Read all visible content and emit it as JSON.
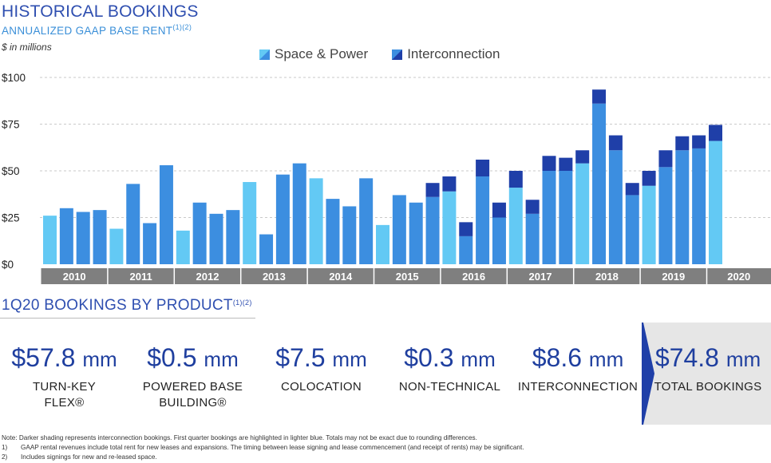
{
  "header": {
    "title": "HISTORICAL BOOKINGS",
    "subtitle": "ANNUALIZED GAAP BASE RENT",
    "subtitle_sup": "(1)(2)",
    "units": "$ in millions"
  },
  "colors": {
    "q1_light": "#63c9f4",
    "space_power": "#3c8ee0",
    "interconnection": "#1f3fa8",
    "axis_band": "#7f7f7f",
    "title_blue": "#2f4fb0"
  },
  "chart_data": {
    "type": "bar",
    "stacked": true,
    "title": "HISTORICAL BOOKINGS",
    "ylabel": "$ in millions",
    "ylim": [
      0,
      100
    ],
    "yticks": [
      "$0",
      "$25",
      "$50",
      "$75",
      "$100"
    ],
    "ytick_values": [
      0,
      25,
      50,
      75,
      100
    ],
    "grid": true,
    "legend_position": "top-center",
    "year_labels": [
      "2010",
      "2011",
      "2012",
      "2013",
      "2014",
      "2015",
      "2016",
      "2017",
      "2018",
      "2019",
      "2020"
    ],
    "categories": [
      "2010 Q1",
      "2010 Q2",
      "2010 Q3",
      "2010 Q4",
      "2011 Q1",
      "2011 Q2",
      "2011 Q3",
      "2011 Q4",
      "2012 Q1",
      "2012 Q2",
      "2012 Q3",
      "2012 Q4",
      "2013 Q1",
      "2013 Q2",
      "2013 Q3",
      "2013 Q4",
      "2014 Q1",
      "2014 Q2",
      "2014 Q3",
      "2014 Q4",
      "2015 Q1",
      "2015 Q2",
      "2015 Q3",
      "2015 Q4",
      "2016 Q1",
      "2016 Q2",
      "2016 Q3",
      "2016 Q4",
      "2017 Q1",
      "2017 Q2",
      "2017 Q3",
      "2017 Q4",
      "2018 Q1",
      "2018 Q2",
      "2018 Q3",
      "2018 Q4",
      "2019 Q1",
      "2019 Q2",
      "2019 Q3",
      "2019 Q4",
      "2020 Q1"
    ],
    "series": [
      {
        "name": "Space & Power",
        "values": [
          26,
          30,
          28,
          29,
          19,
          43,
          22,
          53,
          18,
          33,
          27,
          29,
          44,
          16,
          48,
          54,
          46,
          35,
          31,
          46,
          21,
          37,
          33,
          36,
          39,
          15,
          47,
          25,
          41,
          27,
          50,
          50,
          54,
          86,
          61,
          37,
          42,
          52,
          61,
          62,
          66
        ]
      },
      {
        "name": "Interconnection",
        "values": [
          0,
          0,
          0,
          0,
          0,
          0,
          0,
          0,
          0,
          0,
          0,
          0,
          0,
          0,
          0,
          0,
          0,
          0,
          0,
          0,
          0,
          0,
          0,
          7.5,
          8,
          7.5,
          9,
          8,
          9,
          7.5,
          8,
          7,
          7,
          7.5,
          8,
          6.5,
          8,
          9,
          7.5,
          7,
          8.6
        ]
      }
    ],
    "first_quarter_highlighted": true
  },
  "section": {
    "title": "1Q20 BOOKINGS BY PRODUCT",
    "title_sup": "(1)(2)"
  },
  "products": [
    {
      "amount": "$57.8",
      "unit": "mm",
      "label_line1": "TURN-KEY",
      "label_line2": "FLEX®"
    },
    {
      "amount": "$0.5",
      "unit": "mm",
      "label_line1": "POWERED BASE",
      "label_line2": "BUILDING®"
    },
    {
      "amount": "$7.5",
      "unit": "mm",
      "label_line1": "COLOCATION",
      "label_line2": ""
    },
    {
      "amount": "$0.3",
      "unit": "mm",
      "label_line1": "NON-TECHNICAL",
      "label_line2": ""
    },
    {
      "amount": "$8.6",
      "unit": "mm",
      "label_line1": "INTERCONNECTION",
      "label_line2": ""
    },
    {
      "amount": "$74.8",
      "unit": "mm",
      "label_line1": "TOTAL BOOKINGS",
      "label_line2": ""
    }
  ],
  "notes": {
    "main": "Note:  Darker shading represents interconnection bookings.  First quarter bookings are highlighted in lighter blue.  Totals may not be exact due to rounding differences.",
    "n1_num": "1)",
    "n1": "GAAP rental revenues include total rent for new leases and expansions.  The timing between lease signing and lease commencement (and receipt of rents) may be significant.",
    "n2_num": "2)",
    "n2": "Includes signings for new and re-leased space."
  }
}
